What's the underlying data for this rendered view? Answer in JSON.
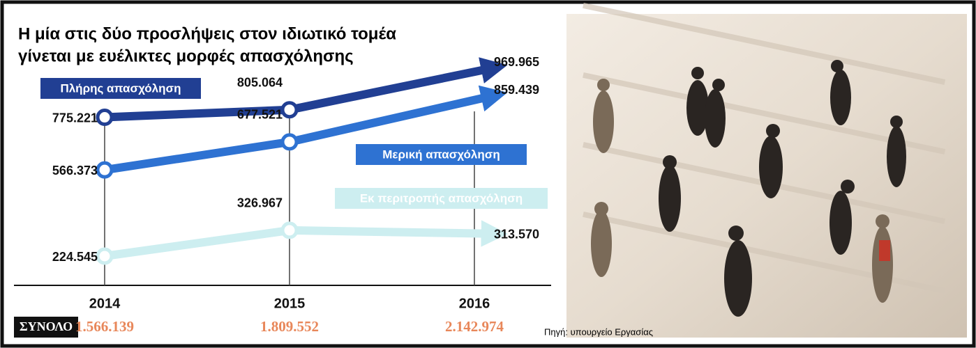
{
  "chart_data": {
    "type": "line",
    "title": [
      "Η μία στις δύο προσλήψεις στον ιδιωτικό τομέα",
      "γίνεται με ευέλικτες μορφές απασχόλησης"
    ],
    "categories": [
      "2014",
      "2015",
      "2016"
    ],
    "series": [
      {
        "name": "Πλήρης απασχόληση",
        "color": "#213f93",
        "values": [
          775221,
          805064,
          969965
        ],
        "value_labels": [
          "775.221",
          "805.064",
          "969.965"
        ]
      },
      {
        "name": "Μερική απασχόληση",
        "color": "#2e72d2",
        "values": [
          566373,
          677521,
          859439
        ],
        "value_labels": [
          "566.373",
          "677.521",
          "859.439"
        ]
      },
      {
        "name": "Εκ περιτροπής απασχόληση",
        "color": "#cdeef0",
        "values": [
          224545,
          326967,
          313570
        ],
        "value_labels": [
          "224.545",
          "326.967",
          "313.570"
        ]
      }
    ],
    "totals": {
      "label": "ΣΥΝΟΛΟ",
      "values": [
        1566139,
        1809552,
        2142974
      ],
      "value_labels": [
        "1.566.139",
        "1.809.552",
        "2.142.974"
      ]
    },
    "source": "Πηγή: υπουργείο Εργασίας"
  }
}
